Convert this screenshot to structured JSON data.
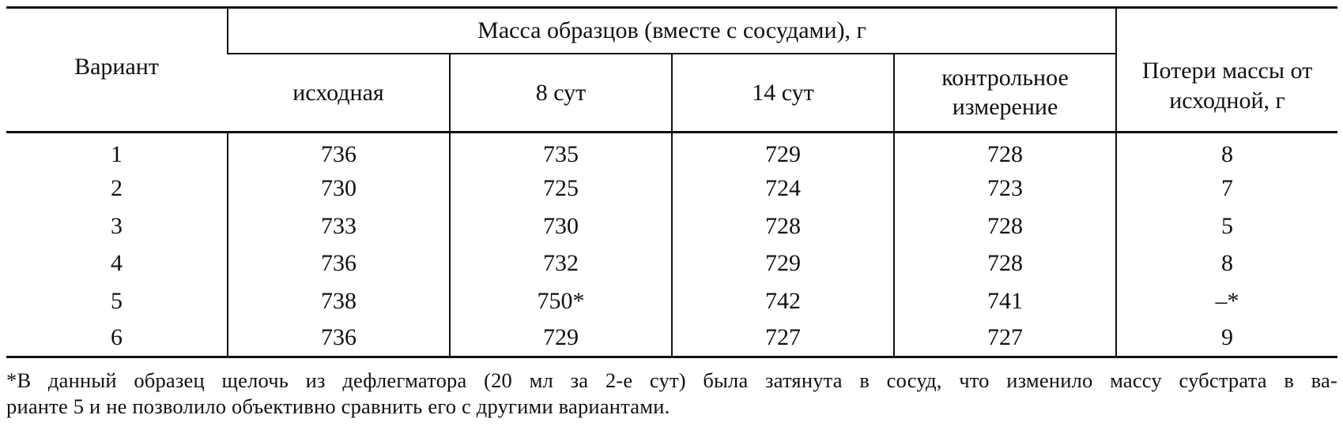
{
  "table": {
    "header": {
      "variant": "Вариант",
      "group": "Масса образцов (вместе с сосудами), г",
      "loss": "Потери массы от исходной, г",
      "subcolumns": [
        "исходная",
        "8 сут",
        "14 сут",
        "контрольное измерение"
      ]
    },
    "rows": [
      {
        "variant": "1",
        "initial": "736",
        "day8": "735",
        "day14": "729",
        "control": "728",
        "loss": "8"
      },
      {
        "variant": "2",
        "initial": "730",
        "day8": "725",
        "day14": "724",
        "control": "723",
        "loss": "7"
      },
      {
        "variant": "3",
        "initial": "733",
        "day8": "730",
        "day14": "728",
        "control": "728",
        "loss": "5"
      },
      {
        "variant": "4",
        "initial": "736",
        "day8": "732",
        "day14": "729",
        "control": "728",
        "loss": "8"
      },
      {
        "variant": "5",
        "initial": "738",
        "day8": "750*",
        "day14": "742",
        "control": "741",
        "loss": "–*"
      },
      {
        "variant": "6",
        "initial": "736",
        "day8": "729",
        "day14": "727",
        "control": "727",
        "loss": "9"
      }
    ]
  },
  "footnote": {
    "line1": "*В данный образец щелочь из дефлегматора (20 мл за 2-е сут) была затянута в сосуд, что изменило массу субстрата в ва-",
    "line2": "рианте 5 и не позволило объективно сравнить его с другими вариантами."
  }
}
